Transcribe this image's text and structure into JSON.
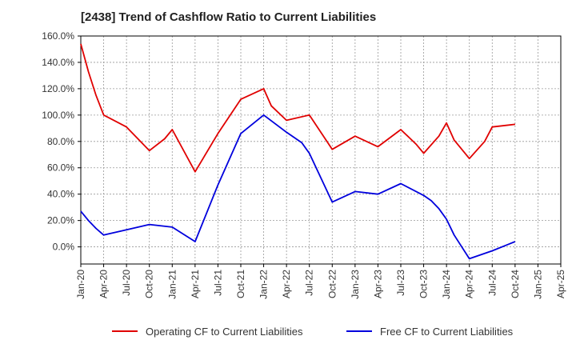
{
  "chart_data": {
    "type": "line",
    "title": "[2438]  Trend of Cashflow Ratio to Current Liabilities",
    "xlabel": "",
    "ylabel": "",
    "x_tick_labels": [
      "Jan-20",
      "Apr-20",
      "Jul-20",
      "Oct-20",
      "Jan-21",
      "Apr-21",
      "Jul-21",
      "Oct-21",
      "Jan-22",
      "Apr-22",
      "Jul-22",
      "Oct-22",
      "Jan-23",
      "Apr-23",
      "Jul-23",
      "Oct-23",
      "Jan-24",
      "Apr-24",
      "Jul-24",
      "Oct-24",
      "Jan-25",
      "Apr-25"
    ],
    "y_tick_labels": [
      "160.0%",
      "140.0%",
      "120.0%",
      "100.0%",
      "80.0%",
      "60.0%",
      "40.0%",
      "20.0%",
      "0.0%"
    ],
    "ylim": [
      -13,
      160
    ],
    "y_ticks": [
      160,
      140,
      120,
      100,
      80,
      60,
      40,
      20,
      0
    ],
    "grid": true,
    "legend_position": "bottom",
    "series": [
      {
        "name": "Operating CF to Current Liabilities",
        "color": "#e00000",
        "x": [
          "Jan-20",
          "Feb-20",
          "Mar-20",
          "Apr-20",
          "Jul-20",
          "Oct-20",
          "Dec-20",
          "Jan-21",
          "Apr-21",
          "Jul-21",
          "Oct-21",
          "Jan-22",
          "Feb-22",
          "Apr-22",
          "Jul-22",
          "Oct-22",
          "Jan-23",
          "Apr-23",
          "Jul-23",
          "Sep-23",
          "Oct-23",
          "Dec-23",
          "Jan-24",
          "Feb-24",
          "Apr-24",
          "Jun-24",
          "Jul-24",
          "Oct-24"
        ],
        "values": [
          154,
          133,
          115,
          100,
          91,
          73,
          82,
          89,
          57,
          86,
          112,
          120,
          107,
          96,
          100,
          74,
          84,
          76,
          89,
          78,
          71,
          84,
          94,
          81,
          67,
          80,
          91,
          93
        ]
      },
      {
        "name": "Free CF to Current Liabilities",
        "color": "#0000dd",
        "x": [
          "Jan-20",
          "Feb-20",
          "Mar-20",
          "Apr-20",
          "Jul-20",
          "Oct-20",
          "Jan-21",
          "Apr-21",
          "Jul-21",
          "Oct-21",
          "Jan-22",
          "Apr-22",
          "Jun-22",
          "Jul-22",
          "Oct-22",
          "Jan-23",
          "Apr-23",
          "Jul-23",
          "Oct-23",
          "Nov-23",
          "Dec-23",
          "Jan-24",
          "Feb-24",
          "Apr-24",
          "Jul-24",
          "Oct-24"
        ],
        "values": [
          27,
          20,
          14,
          9,
          13,
          17,
          15,
          4,
          47,
          86,
          100,
          87,
          79,
          71,
          34,
          42,
          40,
          48,
          39,
          35,
          29,
          21,
          9,
          -9,
          -3,
          4
        ]
      }
    ]
  }
}
